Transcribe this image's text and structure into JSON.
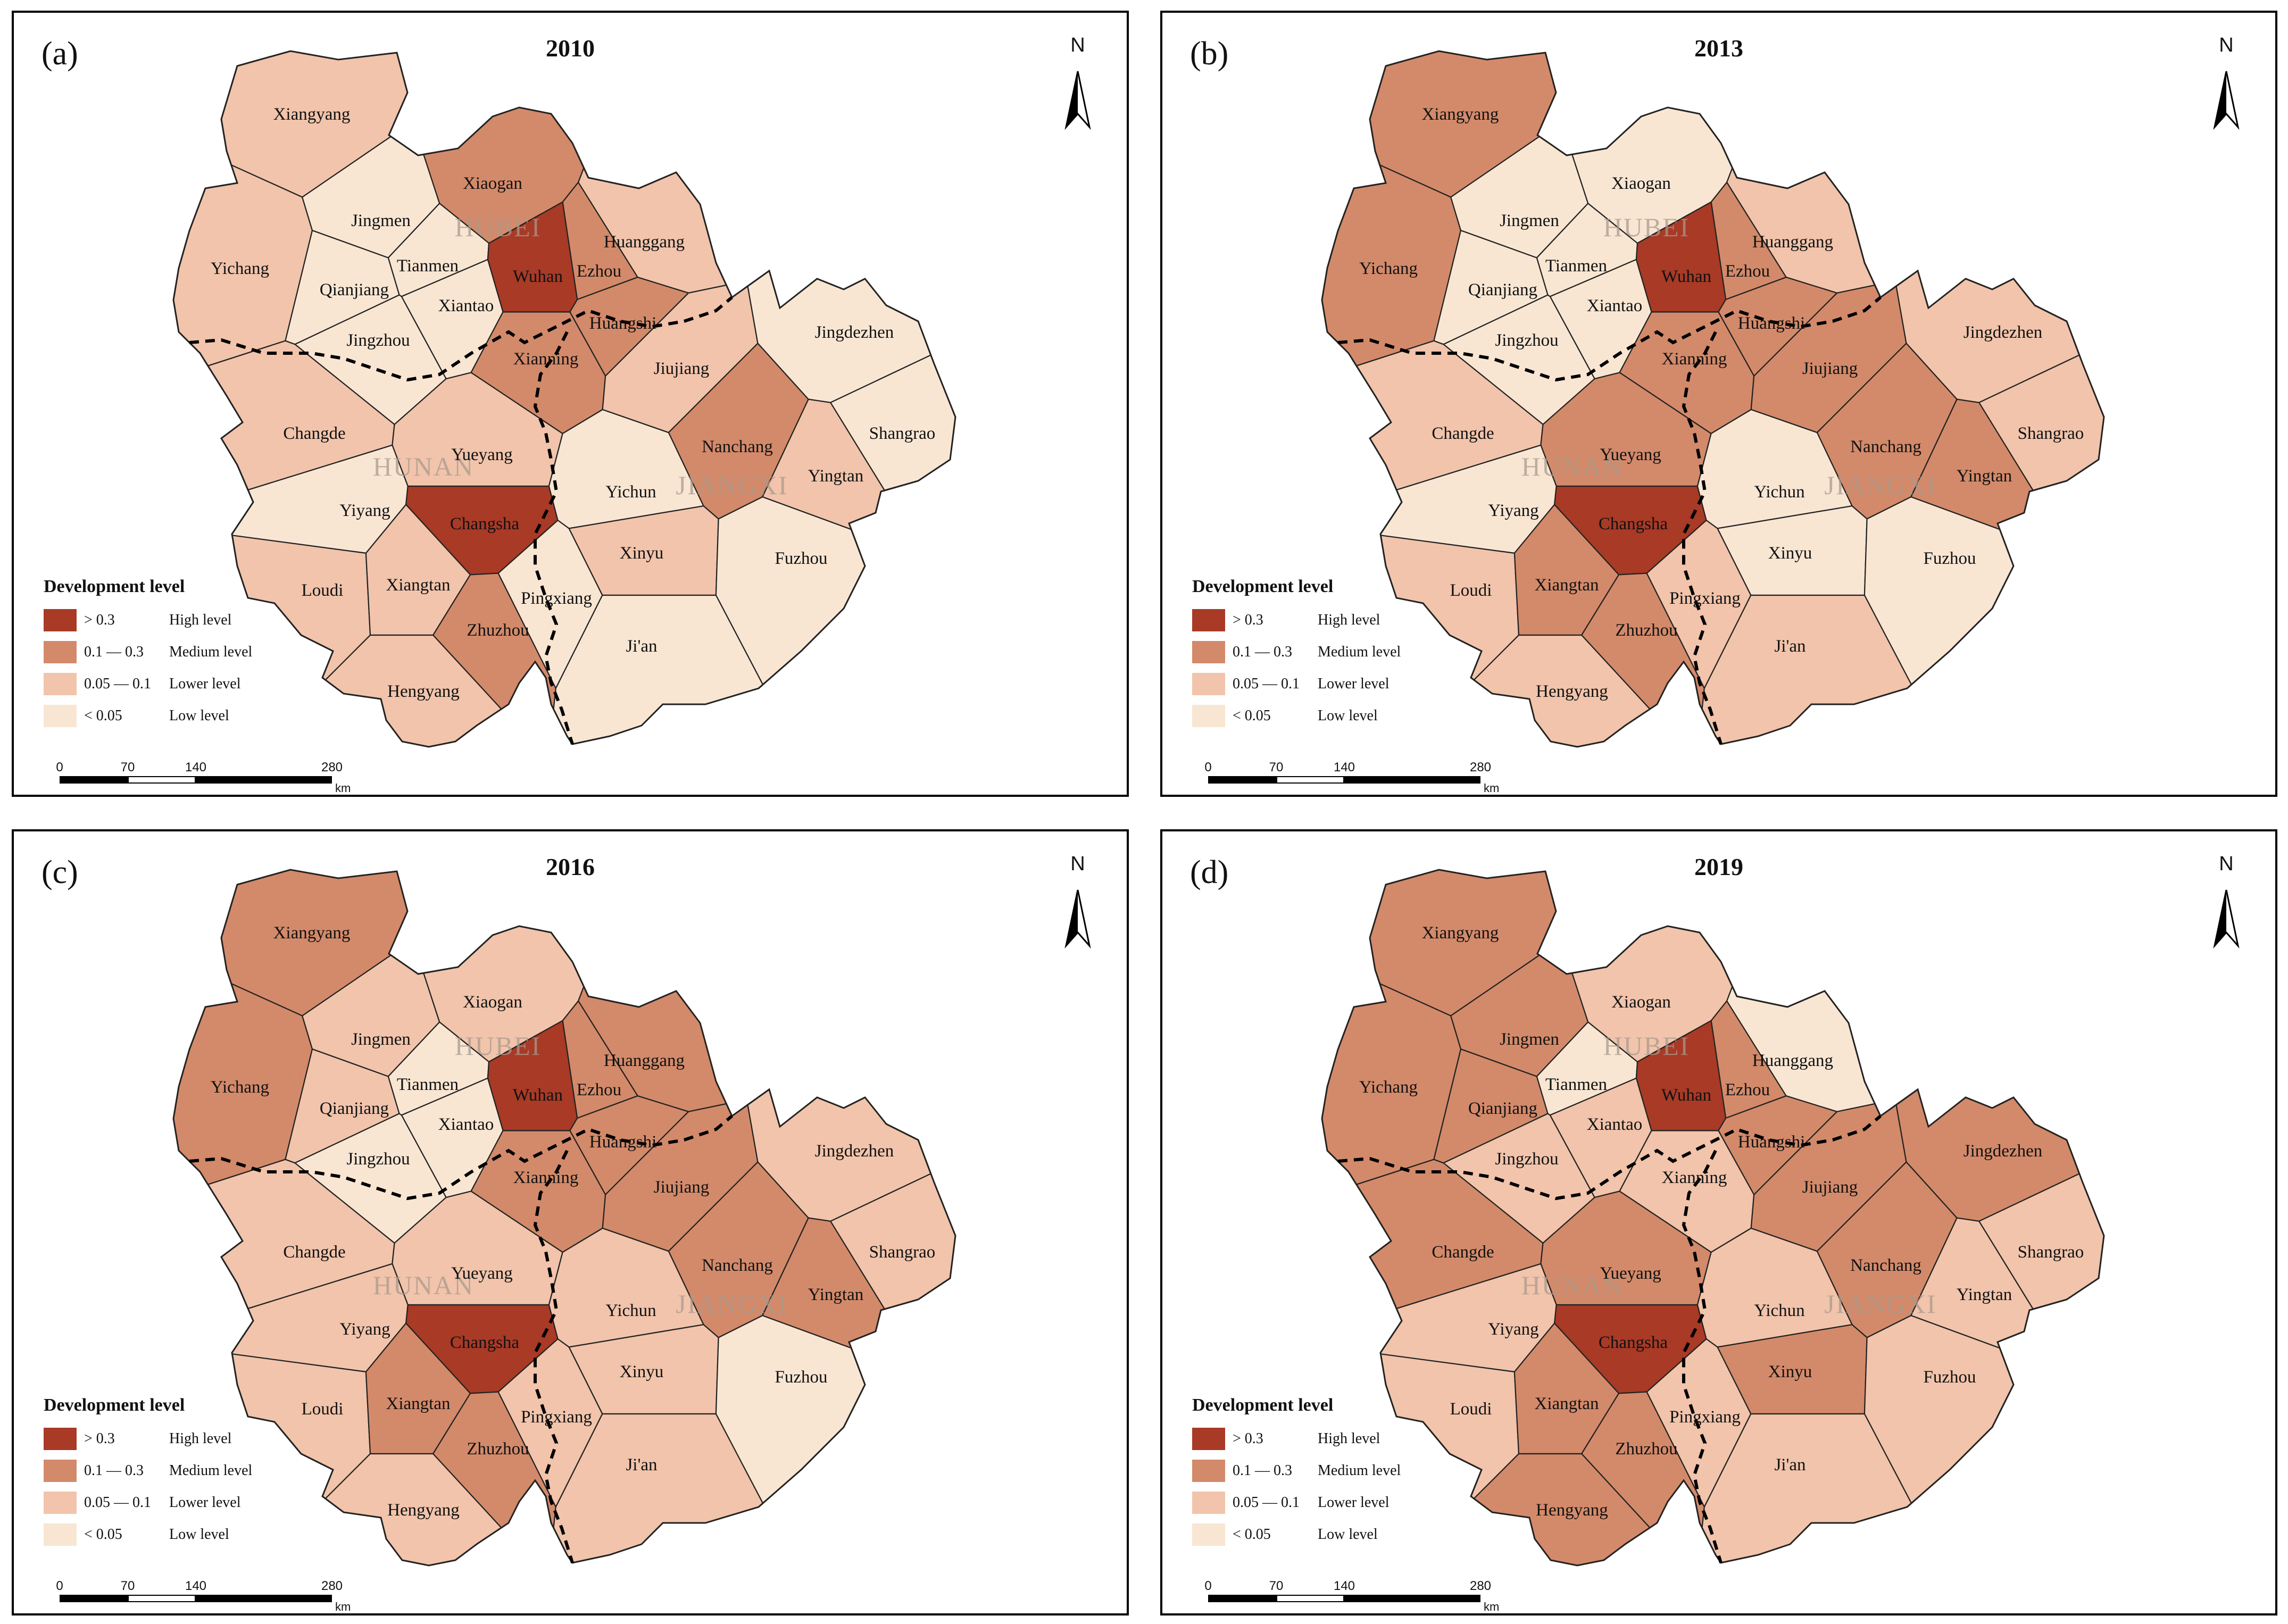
{
  "colors": {
    "high": "#a83a26",
    "medium": "#d38a6a",
    "lower": "#f1c4ab",
    "low": "#f8e6d3",
    "outline": "#222222",
    "province_label": "#a89a8e"
  },
  "legend": {
    "title": "Development level",
    "items": [
      {
        "key": "high",
        "range": "> 0.3",
        "desc": "High level"
      },
      {
        "key": "medium",
        "range": "0.1 — 0.3",
        "desc": "Medium level"
      },
      {
        "key": "lower",
        "range": "0.05 — 0.1",
        "desc": "Lower level"
      },
      {
        "key": "low",
        "range": "< 0.05",
        "desc": "Low level"
      }
    ]
  },
  "scale": {
    "ticks": [
      "0",
      "70",
      "140",
      "280"
    ],
    "unit": "km"
  },
  "north_label": "N",
  "provinces": [
    "HUBEI",
    "HUNAN",
    "JIANGXI"
  ],
  "cities": [
    "Xiangyang",
    "Yichang",
    "Jingmen",
    "Xiaogan",
    "Huanggang",
    "Tianmen",
    "Qianjiang",
    "Wuhan",
    "Ezhou",
    "Xiantao",
    "Jingzhou",
    "Huangshi",
    "Xianning",
    "Jiujiang",
    "Jingdezhen",
    "Changde",
    "Yueyang",
    "Nanchang",
    "Shangrao",
    "Yingtan",
    "Yiyang",
    "Changsha",
    "Yichun",
    "Xinyu",
    "Fuzhou",
    "Loudi",
    "Xiangtan",
    "Pingxiang",
    "Zhuzhou",
    "Ji'an",
    "Hengyang"
  ],
  "panels": [
    {
      "letter": "(a)",
      "year": "2010",
      "levels": {
        "Xiangyang": "lower",
        "Yichang": "lower",
        "Jingmen": "low",
        "Xiaogan": "medium",
        "Huanggang": "lower",
        "Tianmen": "low",
        "Qianjiang": "low",
        "Wuhan": "high",
        "Ezhou": "medium",
        "Xiantao": "low",
        "Jingzhou": "low",
        "Huangshi": "medium",
        "Xianning": "medium",
        "Jiujiang": "lower",
        "Jingdezhen": "low",
        "Changde": "lower",
        "Yueyang": "lower",
        "Nanchang": "medium",
        "Shangrao": "low",
        "Yingtan": "lower",
        "Yiyang": "low",
        "Changsha": "high",
        "Yichun": "low",
        "Xinyu": "lower",
        "Fuzhou": "low",
        "Loudi": "lower",
        "Xiangtan": "lower",
        "Pingxiang": "low",
        "Zhuzhou": "medium",
        "Ji'an": "low",
        "Hengyang": "lower"
      }
    },
    {
      "letter": "(b)",
      "year": "2013",
      "levels": {
        "Xiangyang": "medium",
        "Yichang": "medium",
        "Jingmen": "low",
        "Xiaogan": "low",
        "Huanggang": "lower",
        "Tianmen": "low",
        "Qianjiang": "low",
        "Wuhan": "high",
        "Ezhou": "medium",
        "Xiantao": "low",
        "Jingzhou": "low",
        "Huangshi": "medium",
        "Xianning": "medium",
        "Jiujiang": "medium",
        "Jingdezhen": "lower",
        "Changde": "lower",
        "Yueyang": "medium",
        "Nanchang": "medium",
        "Shangrao": "lower",
        "Yingtan": "medium",
        "Yiyang": "low",
        "Changsha": "high",
        "Yichun": "low",
        "Xinyu": "low",
        "Fuzhou": "low",
        "Loudi": "lower",
        "Xiangtan": "medium",
        "Pingxiang": "lower",
        "Zhuzhou": "medium",
        "Ji'an": "lower",
        "Hengyang": "lower"
      }
    },
    {
      "letter": "(c)",
      "year": "2016",
      "levels": {
        "Xiangyang": "medium",
        "Yichang": "medium",
        "Jingmen": "lower",
        "Xiaogan": "lower",
        "Huanggang": "medium",
        "Tianmen": "low",
        "Qianjiang": "lower",
        "Wuhan": "high",
        "Ezhou": "medium",
        "Xiantao": "low",
        "Jingzhou": "low",
        "Huangshi": "medium",
        "Xianning": "medium",
        "Jiujiang": "medium",
        "Jingdezhen": "lower",
        "Changde": "lower",
        "Yueyang": "lower",
        "Nanchang": "medium",
        "Shangrao": "lower",
        "Yingtan": "medium",
        "Yiyang": "lower",
        "Changsha": "high",
        "Yichun": "lower",
        "Xinyu": "lower",
        "Fuzhou": "low",
        "Loudi": "lower",
        "Xiangtan": "medium",
        "Pingxiang": "lower",
        "Zhuzhou": "medium",
        "Ji'an": "lower",
        "Hengyang": "lower"
      }
    },
    {
      "letter": "(d)",
      "year": "2019",
      "levels": {
        "Xiangyang": "medium",
        "Yichang": "medium",
        "Jingmen": "medium",
        "Xiaogan": "lower",
        "Huanggang": "low",
        "Tianmen": "low",
        "Qianjiang": "medium",
        "Wuhan": "high",
        "Ezhou": "medium",
        "Xiantao": "lower",
        "Jingzhou": "lower",
        "Huangshi": "medium",
        "Xianning": "lower",
        "Jiujiang": "medium",
        "Jingdezhen": "medium",
        "Changde": "medium",
        "Yueyang": "medium",
        "Nanchang": "medium",
        "Shangrao": "lower",
        "Yingtan": "lower",
        "Yiyang": "lower",
        "Changsha": "high",
        "Yichun": "lower",
        "Xinyu": "medium",
        "Fuzhou": "lower",
        "Loudi": "lower",
        "Xiangtan": "medium",
        "Pingxiang": "lower",
        "Zhuzhou": "medium",
        "Ji'an": "lower",
        "Hengyang": "medium"
      }
    }
  ]
}
